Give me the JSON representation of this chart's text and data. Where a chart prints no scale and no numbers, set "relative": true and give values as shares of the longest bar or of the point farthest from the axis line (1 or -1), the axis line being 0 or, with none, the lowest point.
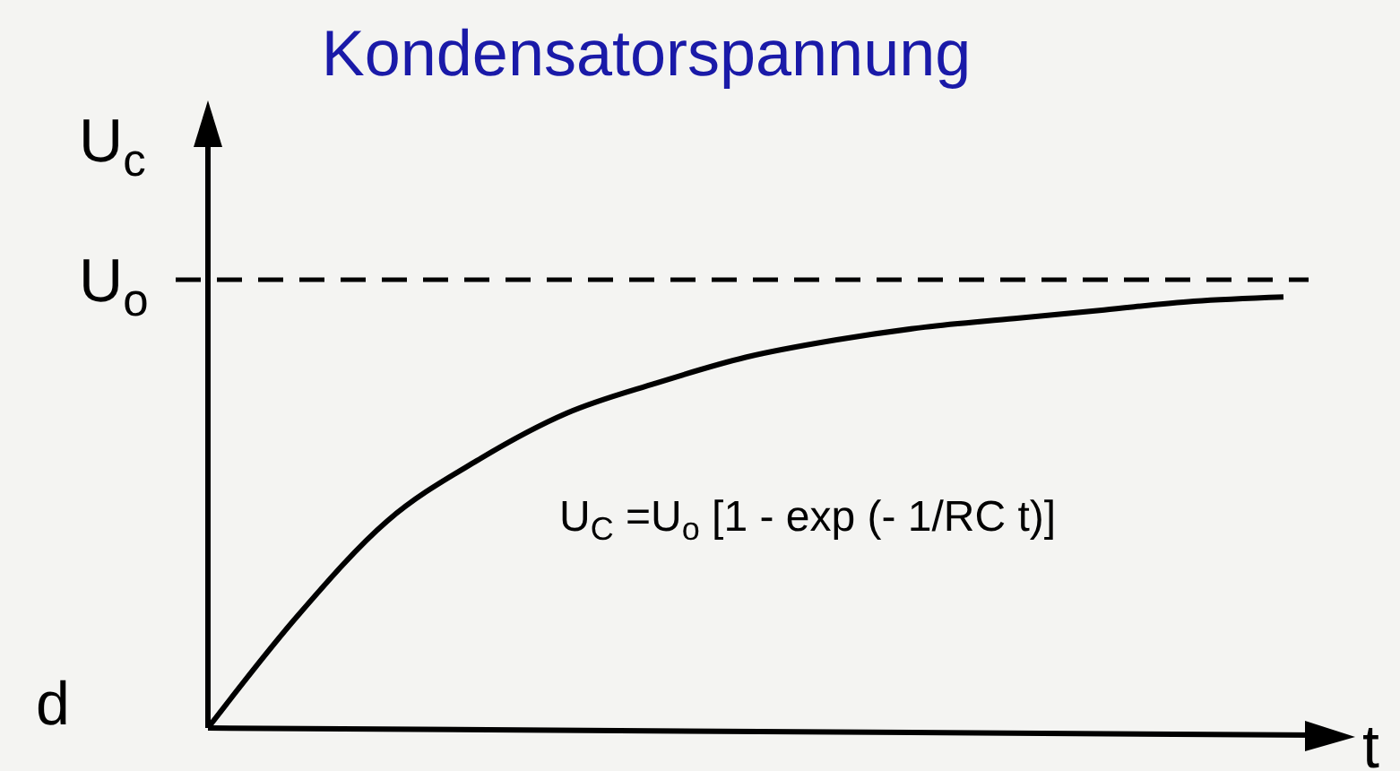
{
  "chart_data": {
    "type": "line",
    "title": "Kondensatorspannung",
    "xlabel": "t",
    "ylabel": "U$_{c}$",
    "relative": true,
    "categories": [
      null,
      null,
      null,
      null,
      null,
      null,
      null,
      null,
      null,
      null,
      null,
      null,
      null
    ],
    "series": [
      {
        "color": "#000000",
        "values": [
          0,
          0.26,
          0.48,
          0.62,
          0.73,
          0.8,
          0.86,
          0.9,
          0.93,
          0.95,
          0.97,
          0.99,
          1
        ]
      }
    ],
    "ref_lines": [
      {
        "axis": "y",
        "value": 1.04,
        "label": "U$_{o}$",
        "line_style": "dashed",
        "color": "#000000"
      }
    ],
    "annotations": [
      "d",
      {
        "text": "U$_{C}$ =U$_{o}$ [1 - exp (- 1/RC t)]"
      }
    ],
    "marker": "none",
    "line_style": "solid"
  }
}
